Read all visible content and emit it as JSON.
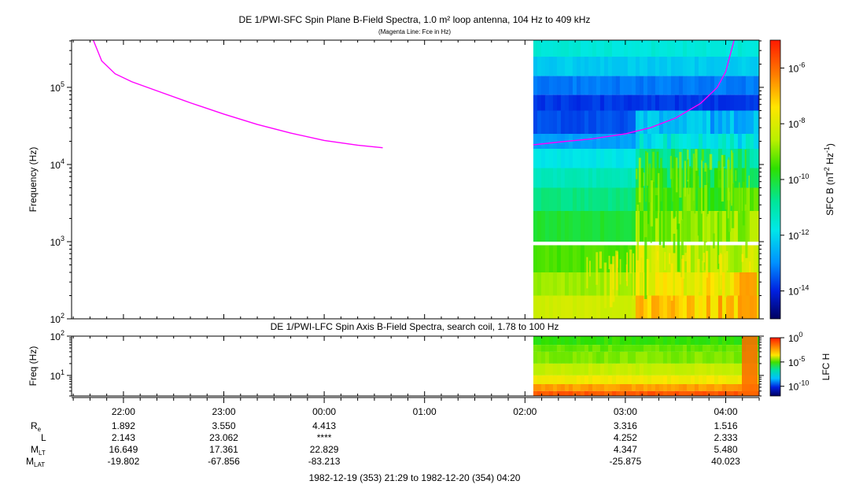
{
  "title": "DE 1/PWI-SFC  Spin Plane B-Field Spectra, 1.0 m² loop antenna, 104 Hz to 409 kHz",
  "subtitle": "(Magenta Line: Fce in Hz)",
  "panel2_title": "DE 1/PWI-LFC  Spin Axis B-Field Spectra, search coil, 1.78 to 100 Hz",
  "date_range": "1982-12-19 (353) 21:29 to 1982-12-20 (354) 04:20",
  "colors": {
    "fce_line": "#ff00ff",
    "frame": "#000000"
  },
  "chart_data": [
    {
      "type": "heatmap",
      "name": "SFC spectrogram",
      "ylabel": "Frequency (Hz)",
      "yscale": "log",
      "ylim": [
        100,
        409000
      ],
      "yticks": [
        {
          "label": "10",
          "exp": "2"
        },
        {
          "label": "10",
          "exp": "3"
        },
        {
          "label": "10",
          "exp": "4"
        },
        {
          "label": "10",
          "exp": "5"
        }
      ],
      "colorbar_label": "SFC B (nT² Hz⁻¹)",
      "colorbar_ticks": [
        {
          "label": "10",
          "exp": "-6"
        },
        {
          "label": "10",
          "exp": "-8"
        },
        {
          "label": "10",
          "exp": "-10"
        },
        {
          "label": "10",
          "exp": "-12"
        },
        {
          "label": "10",
          "exp": "-14"
        }
      ],
      "colorbar_range": [
        -15,
        -5
      ],
      "data_start_time": "02:05",
      "fce_line": {
        "color": "#ff00ff",
        "segment1": {
          "t": [
            "21:42",
            "21:47",
            "21:55",
            "22:05",
            "22:20",
            "22:40",
            "23:00",
            "23:20",
            "23:40",
            "00:00",
            "00:20",
            "00:35"
          ],
          "hz": [
            409000,
            220000,
            150000,
            118000,
            90000,
            63000,
            45000,
            33000,
            25500,
            20500,
            17800,
            16500
          ]
        },
        "segment2": {
          "t": [
            "02:05",
            "02:20",
            "02:40",
            "03:00",
            "03:15",
            "03:30",
            "03:45",
            "03:55",
            "04:00",
            "04:05"
          ],
          "hz": [
            18000,
            19500,
            21500,
            25000,
            30000,
            40000,
            62000,
            100000,
            160000,
            409000
          ]
        }
      }
    },
    {
      "type": "heatmap",
      "name": "LFC spectrogram",
      "ylabel": "Freq (Hz)",
      "yscale": "log",
      "ylim": [
        3,
        100
      ],
      "yticks": [
        {
          "label": "10",
          "exp": "1"
        },
        {
          "label": "10",
          "exp": "2"
        }
      ],
      "colorbar_label": "LFC H",
      "colorbar_ticks": [
        {
          "label": "10",
          "exp": "0"
        },
        {
          "label": "10",
          "exp": "-5"
        },
        {
          "label": "10",
          "exp": "-10"
        }
      ],
      "colorbar_range": [
        -12,
        0
      ]
    }
  ],
  "time_axis": {
    "ticks": [
      "22:00",
      "23:00",
      "00:00",
      "01:00",
      "02:00",
      "03:00",
      "04:00"
    ],
    "start": "21:29",
    "end": "04:20"
  },
  "ephemeris": [
    {
      "label": "R",
      "sub": "e",
      "values": [
        "1.892",
        "3.550",
        "4.413",
        "",
        "",
        "3.316",
        "1.516"
      ]
    },
    {
      "label": "L",
      "sub": "",
      "values": [
        "2.143",
        "23.062",
        "****",
        "",
        "",
        "4.252",
        "2.333"
      ]
    },
    {
      "label": "M",
      "sub": "LT",
      "values": [
        "16.649",
        "17.361",
        "22.829",
        "",
        "",
        "4.347",
        "5.480"
      ]
    },
    {
      "label": "M",
      "sub": "LAT",
      "values": [
        "-19.802",
        "-67.856",
        "-83.213",
        "",
        "",
        "-25.875",
        "40.023"
      ]
    }
  ]
}
